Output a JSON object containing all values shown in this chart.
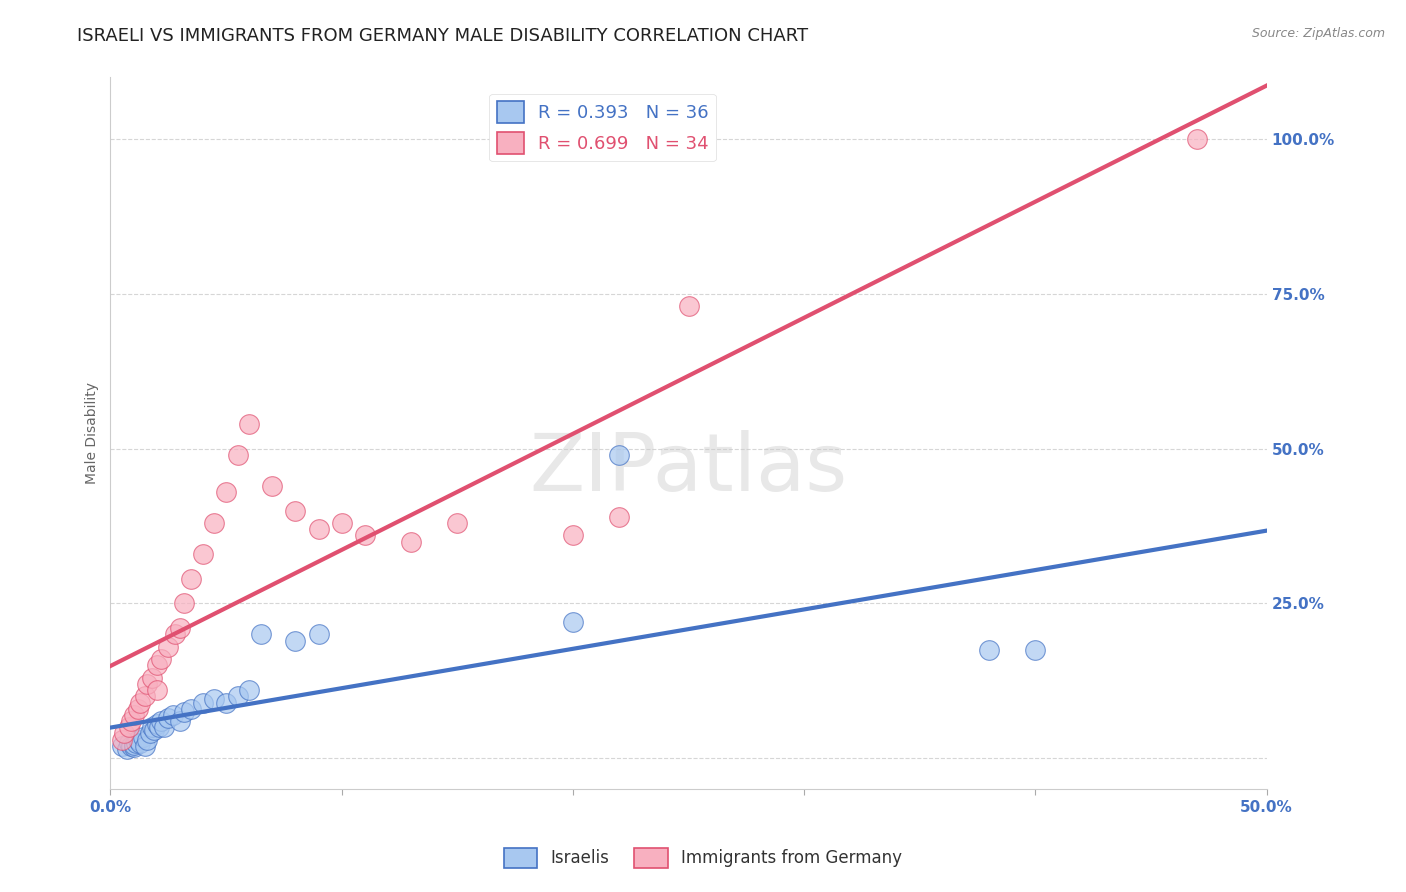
{
  "title": "ISRAELI VS IMMIGRANTS FROM GERMANY MALE DISABILITY CORRELATION CHART",
  "source_text": "Source: ZipAtlas.com",
  "ylabel": "Male Disability",
  "x_min": 0.0,
  "x_max": 0.5,
  "y_min": -0.05,
  "y_max": 1.1,
  "x_ticks": [
    0.0,
    0.1,
    0.2,
    0.3,
    0.4,
    0.5
  ],
  "x_tick_labels": [
    "0.0%",
    "",
    "",
    "",
    "",
    "50.0%"
  ],
  "y_ticks": [
    0.0,
    0.25,
    0.5,
    0.75,
    1.0
  ],
  "y_tick_labels": [
    "",
    "25.0%",
    "50.0%",
    "75.0%",
    "100.0%"
  ],
  "blue_R": 0.393,
  "blue_N": 36,
  "pink_R": 0.699,
  "pink_N": 34,
  "blue_color": "#A8C8F0",
  "pink_color": "#F8B0C0",
  "blue_line_color": "#4472C4",
  "pink_line_color": "#E05070",
  "legend_blue_label": "R = 0.393   N = 36",
  "legend_pink_label": "R = 0.699   N = 34",
  "watermark_text": "ZIPatlas",
  "blue_scatter_x": [
    0.005,
    0.007,
    0.008,
    0.009,
    0.01,
    0.01,
    0.011,
    0.012,
    0.013,
    0.014,
    0.015,
    0.016,
    0.017,
    0.018,
    0.019,
    0.02,
    0.021,
    0.022,
    0.023,
    0.025,
    0.027,
    0.03,
    0.032,
    0.035,
    0.04,
    0.045,
    0.05,
    0.055,
    0.06,
    0.065,
    0.08,
    0.09,
    0.2,
    0.22,
    0.38,
    0.4
  ],
  "blue_scatter_y": [
    0.02,
    0.015,
    0.025,
    0.02,
    0.018,
    0.022,
    0.025,
    0.03,
    0.025,
    0.035,
    0.02,
    0.03,
    0.04,
    0.05,
    0.045,
    0.055,
    0.05,
    0.06,
    0.05,
    0.065,
    0.07,
    0.06,
    0.075,
    0.08,
    0.09,
    0.095,
    0.09,
    0.1,
    0.11,
    0.2,
    0.19,
    0.2,
    0.22,
    0.49,
    0.175,
    0.175
  ],
  "pink_scatter_x": [
    0.005,
    0.006,
    0.008,
    0.009,
    0.01,
    0.012,
    0.013,
    0.015,
    0.016,
    0.018,
    0.02,
    0.02,
    0.022,
    0.025,
    0.028,
    0.03,
    0.032,
    0.035,
    0.04,
    0.045,
    0.05,
    0.055,
    0.06,
    0.07,
    0.08,
    0.09,
    0.1,
    0.11,
    0.13,
    0.15,
    0.2,
    0.22,
    0.25,
    0.47
  ],
  "pink_scatter_y": [
    0.03,
    0.04,
    0.05,
    0.06,
    0.07,
    0.08,
    0.09,
    0.1,
    0.12,
    0.13,
    0.11,
    0.15,
    0.16,
    0.18,
    0.2,
    0.21,
    0.25,
    0.29,
    0.33,
    0.38,
    0.43,
    0.49,
    0.54,
    0.44,
    0.4,
    0.37,
    0.38,
    0.36,
    0.35,
    0.38,
    0.36,
    0.39,
    0.73,
    1.0
  ],
  "background_color": "#FFFFFF",
  "tick_color": "#4472C4",
  "grid_color": "#CCCCCC",
  "title_fontsize": 13,
  "axis_label_fontsize": 10,
  "tick_fontsize": 11
}
